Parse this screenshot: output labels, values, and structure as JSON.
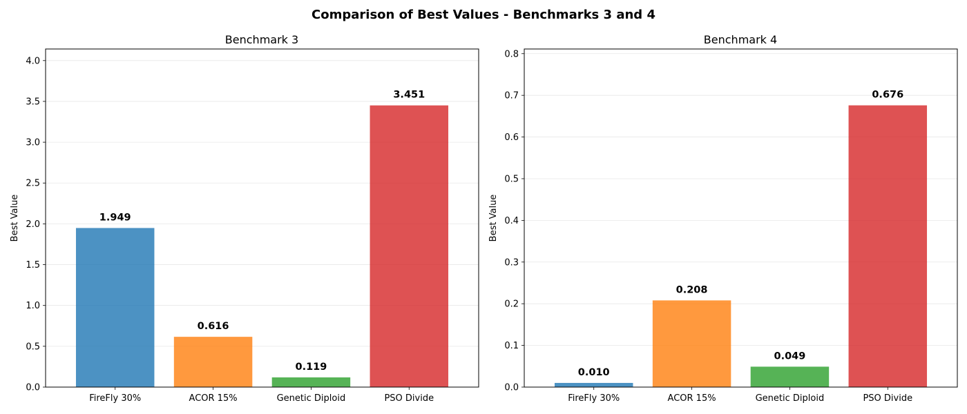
{
  "figure": {
    "title": "Comparison of Best Values - Benchmarks 3 and 4"
  },
  "chart_data": [
    {
      "type": "bar",
      "title": "Benchmark 3",
      "xlabel": "",
      "ylabel": "Best Value",
      "categories": [
        "FireFly 30%",
        "ACOR 15%",
        "Genetic Diploid",
        "PSO Divide"
      ],
      "values": [
        1.949,
        0.616,
        0.119,
        3.451
      ],
      "data_labels": [
        "1.949",
        "0.616",
        "0.119",
        "3.451"
      ],
      "colors": [
        "#1f77b4",
        "#ff7f0e",
        "#2ca02c",
        "#d62728"
      ],
      "ylim": [
        0,
        4.142
      ],
      "yticks": [
        0.0,
        0.5,
        1.0,
        1.5,
        2.0,
        2.5,
        3.0,
        3.5,
        4.0
      ],
      "ytick_labels": [
        "0.0",
        "0.5",
        "1.0",
        "1.5",
        "2.0",
        "2.5",
        "3.0",
        "3.5",
        "4.0"
      ],
      "grid": "y"
    },
    {
      "type": "bar",
      "title": "Benchmark 4",
      "xlabel": "",
      "ylabel": "Best Value",
      "categories": [
        "FireFly 30%",
        "ACOR 15%",
        "Genetic Diploid",
        "PSO Divide"
      ],
      "values": [
        0.01,
        0.208,
        0.049,
        0.676
      ],
      "data_labels": [
        "0.010",
        "0.208",
        "0.049",
        "0.676"
      ],
      "colors": [
        "#1f77b4",
        "#ff7f0e",
        "#2ca02c",
        "#d62728"
      ],
      "ylim": [
        0,
        0.8112
      ],
      "yticks": [
        0.0,
        0.1,
        0.2,
        0.3,
        0.4,
        0.5,
        0.6,
        0.7,
        0.8
      ],
      "ytick_labels": [
        "0.0",
        "0.1",
        "0.2",
        "0.3",
        "0.4",
        "0.5",
        "0.6",
        "0.7",
        "0.8"
      ],
      "grid": "y"
    }
  ]
}
